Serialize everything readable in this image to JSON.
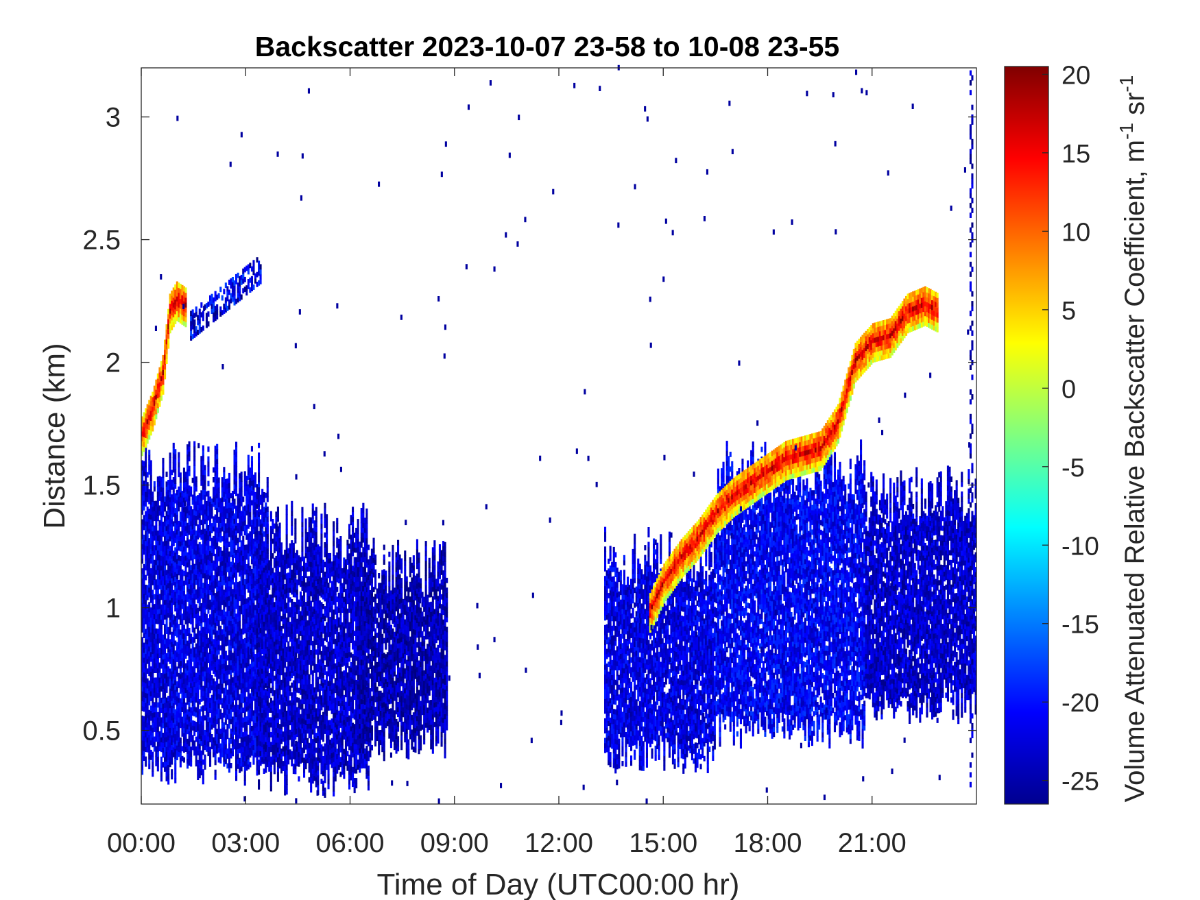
{
  "chart_data": {
    "type": "heatmap",
    "title": "Backscatter 2023-10-07 23-58 to 10-08 23-55",
    "xlabel": "Time of Day (UTC00:00 hr)",
    "ylabel": "Distance (km)",
    "colorbar_label": "Volume Attenuated Relative Backscatter Coefficient, m",
    "colorbar_label_sup1": "-1",
    "colorbar_label_mid": " sr",
    "colorbar_label_sup2": "-1",
    "xlim": [
      0,
      24
    ],
    "ylim": [
      0.2,
      3.2
    ],
    "x_ticks": [
      0,
      3,
      6,
      9,
      12,
      15,
      18,
      21
    ],
    "x_tick_labels": [
      "00:00",
      "03:00",
      "06:00",
      "09:00",
      "12:00",
      "15:00",
      "18:00",
      "21:00"
    ],
    "y_ticks": [
      0.5,
      1,
      1.5,
      2,
      2.5,
      3
    ],
    "y_tick_labels": [
      "0.5",
      "1",
      "1.5",
      "2",
      "2.5",
      "3"
    ],
    "clim": [
      -26.5,
      20.5
    ],
    "c_ticks": [
      20,
      15,
      10,
      5,
      0,
      -5,
      -10,
      -15,
      -20,
      -25
    ],
    "c_tick_labels": [
      "20",
      "15",
      "10",
      "5",
      "0",
      "-5",
      "-10",
      "-15",
      "-20",
      "-25"
    ],
    "colormap": "jet",
    "grid": false,
    "aerosol_layer_regions": [
      {
        "t_start": 0.0,
        "t_end": 3.6,
        "z_bottom": 0.35,
        "z_top": 1.55,
        "value": -22
      },
      {
        "t_start": 3.3,
        "t_end": 6.5,
        "z_bottom": 0.3,
        "z_top": 1.3,
        "value": -23
      },
      {
        "t_start": 6.2,
        "t_end": 8.8,
        "z_bottom": 0.45,
        "z_top": 1.15,
        "value": -24
      },
      {
        "t_start": 13.3,
        "t_end": 16.5,
        "z_bottom": 0.4,
        "z_top": 1.2,
        "value": -22
      },
      {
        "t_start": 16.5,
        "t_end": 20.8,
        "z_bottom": 0.5,
        "z_top": 1.55,
        "value": -21
      },
      {
        "t_start": 20.8,
        "t_end": 24.0,
        "z_bottom": 0.6,
        "z_top": 1.45,
        "value": -23
      }
    ],
    "boundary_layer_top": {
      "times": [
        0.0,
        0.3,
        0.6,
        0.8,
        1.0,
        1.3,
        14.6,
        15.0,
        15.5,
        16.0,
        16.5,
        17.0,
        17.5,
        18.0,
        18.5,
        19.0,
        19.5,
        20.0,
        20.5,
        21.0,
        21.5,
        22.0,
        22.5,
        22.9
      ],
      "heights": [
        1.7,
        1.8,
        1.95,
        2.2,
        2.25,
        2.22,
        0.98,
        1.1,
        1.2,
        1.28,
        1.38,
        1.45,
        1.5,
        1.55,
        1.6,
        1.62,
        1.64,
        1.75,
        2.0,
        2.08,
        2.1,
        2.2,
        2.23,
        2.2
      ],
      "peak_value": 16
    },
    "high_cloud_streaks": [
      {
        "t_start": 1.4,
        "t_end": 3.4,
        "z_start": 2.15,
        "z_end": 2.38,
        "value": -24
      }
    ],
    "edge_column": {
      "t": 23.8,
      "z_bottom": 0.25,
      "z_top": 3.18,
      "value": -24
    }
  }
}
